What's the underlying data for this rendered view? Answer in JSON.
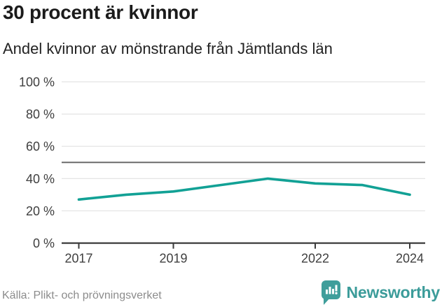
{
  "header": {
    "title": "30 procent är kvinnor",
    "subtitle": "Andel kvinnor av mönstrande från Jämtlands län"
  },
  "chart_data": {
    "type": "line",
    "title": "30 procent är kvinnor",
    "subtitle": "Andel kvinnor av mönstrande från Jämtlands län",
    "x": [
      2017,
      2018,
      2019,
      2020,
      2021,
      2022,
      2023,
      2024
    ],
    "series": [
      {
        "name": "Andel kvinnor av mönstrande",
        "color": "#12a195",
        "values": [
          27,
          30,
          32,
          36,
          40,
          37,
          36,
          30
        ]
      }
    ],
    "ylim": [
      0,
      100
    ],
    "yticks": [
      0,
      20,
      40,
      60,
      80,
      100
    ],
    "ytick_suffix": " %",
    "xticks": [
      2017,
      2019,
      2022,
      2024
    ],
    "reference_line": {
      "value": 50,
      "color": "#6b6b6b"
    },
    "grid": true,
    "legend_position": "none",
    "xlabel": "",
    "ylabel": ""
  },
  "footer": {
    "source": "Källa: Plikt- och prövningsverket",
    "brand": "Newsworthy",
    "logo_icon": "bar-chart-speech-bubble-icon"
  },
  "colors": {
    "line": "#12a195",
    "brand_teal": "#3c9c9a",
    "badge_teal": "#3f9e9b",
    "grid": "#e4e4e4",
    "axis": "#3a3a3a",
    "reference": "#6b6b6b",
    "tick_text": "#3f3f3f",
    "title_text": "#1b1b1b",
    "muted_text": "#8c8c8c"
  }
}
